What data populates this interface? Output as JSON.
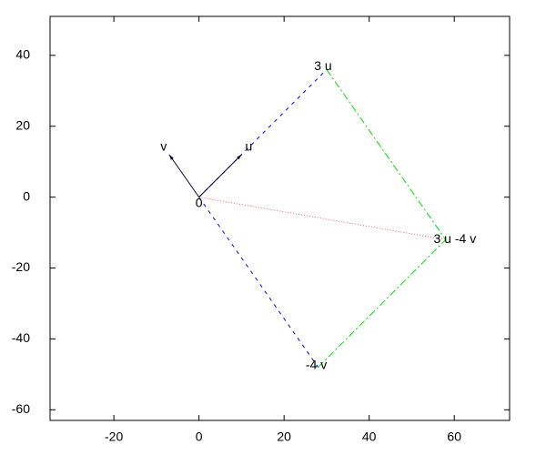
{
  "chart_data": {
    "type": "vector",
    "points": [
      {
        "label": "0",
        "x": 0,
        "y": 0
      },
      {
        "label": "u",
        "x": 10,
        "y": 12
      },
      {
        "label": "v",
        "x": -7,
        "y": 12
      },
      {
        "label": "3 u",
        "x": 30,
        "y": 36
      },
      {
        "label": "-4 v",
        "x": 28,
        "y": -48
      },
      {
        "label": "3 u -4 v",
        "x": 58,
        "y": -12
      }
    ],
    "xlim": [
      -35,
      73
    ],
    "ylim": [
      -63,
      51
    ],
    "xticks": [
      -20,
      0,
      20,
      40,
      60
    ],
    "yticks": [
      -60,
      -40,
      -20,
      0,
      20,
      40
    ]
  }
}
